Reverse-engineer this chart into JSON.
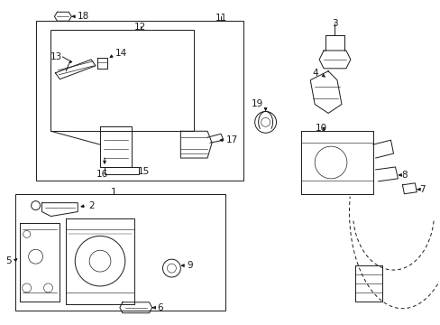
{
  "bg_color": "#ffffff",
  "line_color": "#1a1a1a",
  "fig_width": 4.89,
  "fig_height": 3.6,
  "dpi": 100,
  "lw": 0.7,
  "fs": 7.5
}
